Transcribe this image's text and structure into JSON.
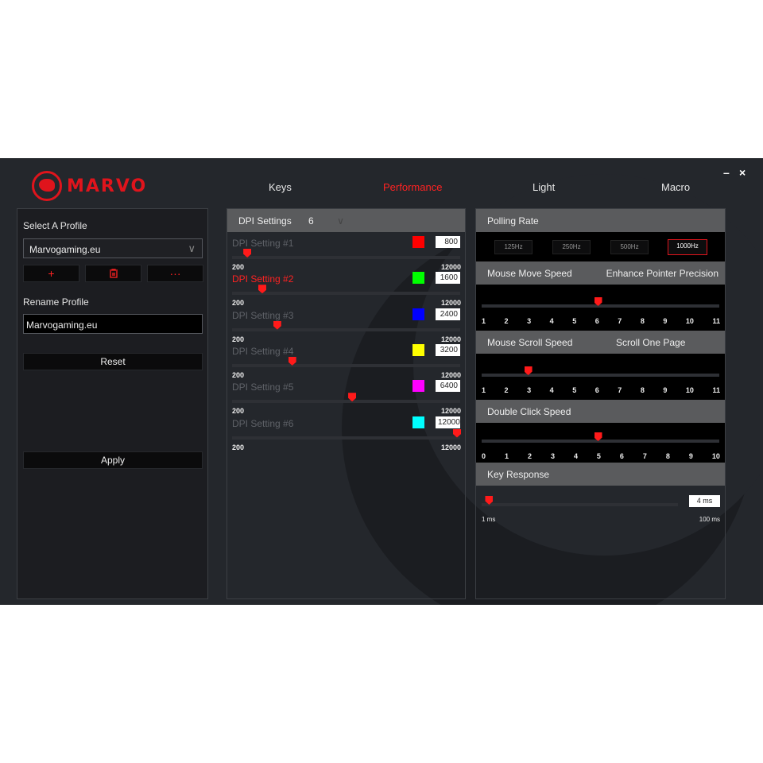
{
  "brand": "MARVO",
  "tabs": [
    {
      "label": "Keys"
    },
    {
      "label": "Performance",
      "active": true
    },
    {
      "label": "Light"
    },
    {
      "label": "Macro"
    }
  ],
  "window": {
    "minimize": "–",
    "close": "×"
  },
  "profile": {
    "select_label": "Select A Profile",
    "selected": "Marvogaming.eu",
    "add": "+",
    "delete_icon": "trash",
    "more": "···",
    "rename_label": "Rename Profile",
    "rename_value": "Marvogaming.eu",
    "reset": "Reset",
    "apply": "Apply"
  },
  "dpi": {
    "header": "DPI Settings",
    "count": "6",
    "min": "200",
    "max": "12000",
    "active_index": 1,
    "rows": [
      {
        "label": "DPI Setting #1",
        "value": "800",
        "color": "#ff0000"
      },
      {
        "label": "DPI Setting #2",
        "value": "1600",
        "color": "#00ff00"
      },
      {
        "label": "DPI Setting #3",
        "value": "2400",
        "color": "#0000ff"
      },
      {
        "label": "DPI Setting #4",
        "value": "3200",
        "color": "#ffff00"
      },
      {
        "label": "DPI Setting #5",
        "value": "6400",
        "color": "#ff00ff"
      },
      {
        "label": "DPI Setting #6",
        "value": "12000",
        "color": "#00ffff"
      }
    ]
  },
  "polling": {
    "header": "Polling Rate",
    "options": [
      "125Hz",
      "250Hz",
      "500Hz",
      "1000Hz"
    ],
    "selected": "1000Hz"
  },
  "move": {
    "header": "Mouse Move Speed",
    "option": "Enhance Pointer Precision",
    "ticks": [
      "1",
      "2",
      "3",
      "4",
      "5",
      "6",
      "7",
      "8",
      "9",
      "10",
      "11"
    ],
    "value": 6
  },
  "scroll": {
    "header": "Mouse Scroll Speed",
    "option": "Scroll One Page",
    "ticks": [
      "1",
      "2",
      "3",
      "4",
      "5",
      "6",
      "7",
      "8",
      "9",
      "10",
      "11"
    ],
    "value": 3
  },
  "dclick": {
    "header": "Double Click Speed",
    "ticks": [
      "0",
      "1",
      "2",
      "3",
      "4",
      "5",
      "6",
      "7",
      "8",
      "9",
      "10"
    ],
    "value": 5
  },
  "key": {
    "header": "Key Response",
    "value": "4 ms",
    "min_label": "1 ms",
    "max_label": "100 ms",
    "num": 4,
    "min": 1,
    "max": 100
  },
  "accent": "#ff2222"
}
